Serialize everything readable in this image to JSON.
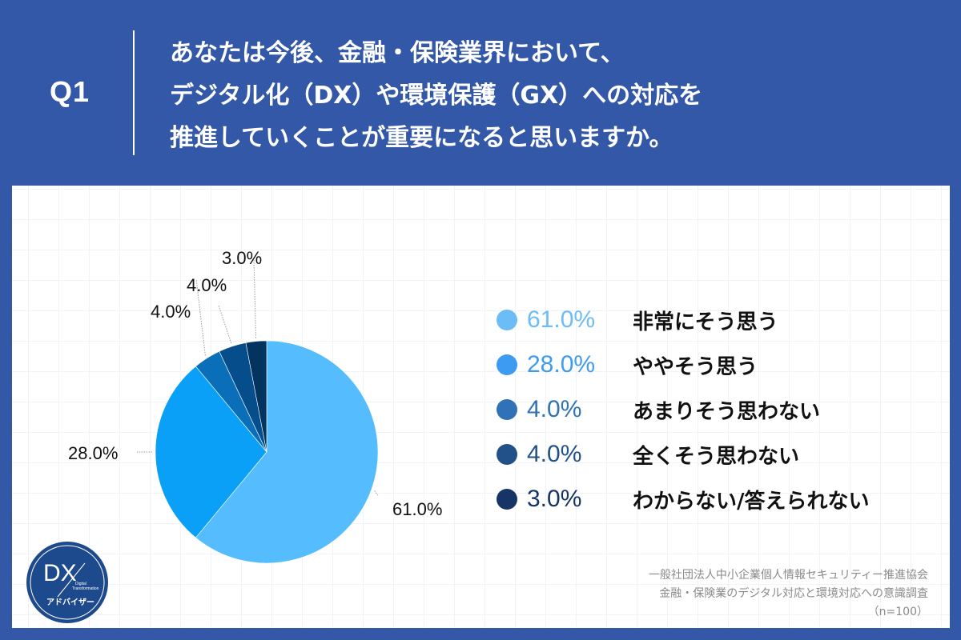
{
  "header": {
    "question_label": "Q1",
    "question_lines": [
      "あなたは今後、金融・保険業界において、",
      "デジタル化（DX）や環境保護（GX）への対応を",
      "推進していくことが重要になると思いますか。"
    ],
    "background_color": "#3458a8"
  },
  "chart_data": {
    "type": "pie",
    "title": "あなたは今後、金融・保険業界において、デジタル化（DX）や環境保護（GX）への対応を推進していくことが重要になると思いますか。",
    "categories": [
      "非常にそう思う",
      "ややそう思う",
      "あまりそう思わない",
      "全くそう思わない",
      "わからない/答えられない"
    ],
    "values": [
      61.0,
      28.0,
      4.0,
      4.0,
      3.0
    ],
    "labels": [
      "61.0%",
      "28.0%",
      "4.0%",
      "4.0%",
      "3.0%"
    ],
    "slice_colors": [
      "#55bdfd",
      "#0aa0f8",
      "#0a6fb8",
      "#064d8c",
      "#03335f"
    ],
    "start_angle": "12 o'clock, clockwise",
    "legend_position": "right",
    "n": 100
  },
  "legend": [
    {
      "pct": "61.0%",
      "label": "非常にそう思う",
      "color": "#6bbcf7"
    },
    {
      "pct": "28.0%",
      "label": "ややそう思う",
      "color": "#3d9bf0"
    },
    {
      "pct": "4.0%",
      "label": "あまりそう思わない",
      "color": "#2f72b5"
    },
    {
      "pct": "4.0%",
      "label": "全くそう思わない",
      "color": "#22518a"
    },
    {
      "pct": "3.0%",
      "label": "わからない/答えられない",
      "color": "#173466"
    }
  ],
  "source": {
    "line1": "一般社団法人中小企業個人情報セキュリティー推進協会",
    "line2": "金融・保険業のデジタル対応と環境対応への意識調査",
    "line3": "（n=100）"
  },
  "logo": {
    "main": "DX",
    "sub1": "Digital",
    "sub2": "Transformation",
    "caption": "アドバイザー",
    "color": "#1d4a8c"
  }
}
